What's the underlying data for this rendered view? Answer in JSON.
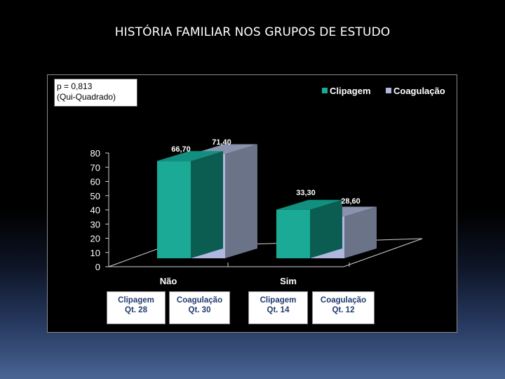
{
  "slide": {
    "title": "HISTÓRIA FAMILIAR NOS GRUPOS DE ESTUDO"
  },
  "stats": {
    "p_value": "p = 0,813",
    "test": "(Qui-Quadrado)"
  },
  "chart_data": {
    "type": "bar",
    "categories": [
      "Não",
      "Sim"
    ],
    "series": [
      {
        "name": "Clipagem",
        "values": [
          66.7,
          33.3
        ],
        "labels": [
          "66,70",
          "33,30"
        ],
        "color": "#1aaa96"
      },
      {
        "name": "Coagulação",
        "values": [
          71.4,
          28.6
        ],
        "labels": [
          "71,40",
          "28,60"
        ],
        "color": "#b0b8e0"
      }
    ],
    "y_ticks": [
      "0",
      "10",
      "20",
      "30",
      "40",
      "50",
      "60",
      "70",
      "80"
    ],
    "ylim": [
      0,
      80
    ],
    "grid": false,
    "legend": "top-right",
    "title": "",
    "xlabel": "",
    "ylabel": ""
  },
  "counts": [
    {
      "group": "Clipagem",
      "qt": "Qt. 28"
    },
    {
      "group": "Coagulação",
      "qt": "Qt. 30"
    },
    {
      "group": "Clipagem",
      "qt": "Qt. 14"
    },
    {
      "group": "Coagulação",
      "qt": "Qt. 12"
    }
  ]
}
